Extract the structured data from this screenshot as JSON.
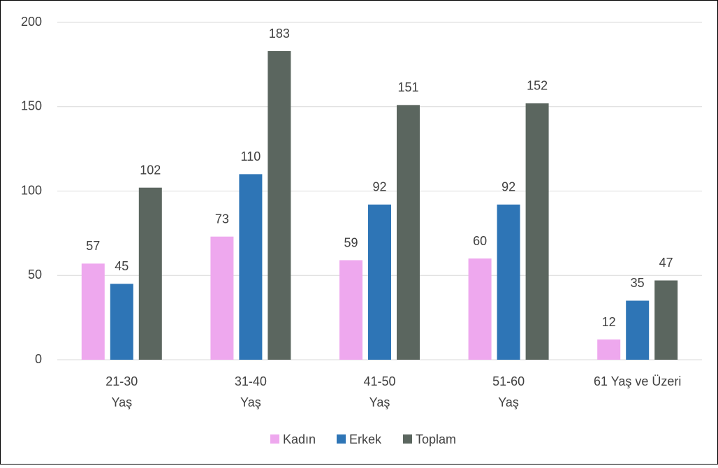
{
  "chart_data": {
    "type": "bar",
    "categories": [
      [
        "21-30",
        "Yaş"
      ],
      [
        "31-40",
        "Yaş"
      ],
      [
        "41-50",
        "Yaş"
      ],
      [
        "51-60",
        "Yaş"
      ],
      [
        "61 Yaş ve Üzeri"
      ]
    ],
    "series": [
      {
        "name": "Kadın",
        "color": "#eea8ee",
        "values": [
          57,
          73,
          59,
          60,
          12
        ]
      },
      {
        "name": "Erkek",
        "color": "#2e75b6",
        "values": [
          45,
          110,
          92,
          92,
          35
        ]
      },
      {
        "name": "Toplam",
        "color": "#5b665f",
        "values": [
          102,
          183,
          151,
          152,
          47
        ]
      }
    ],
    "ylim": [
      0,
      200
    ],
    "yticks": [
      0,
      50,
      100,
      150,
      200
    ],
    "grid": true,
    "legend": "bottom"
  }
}
